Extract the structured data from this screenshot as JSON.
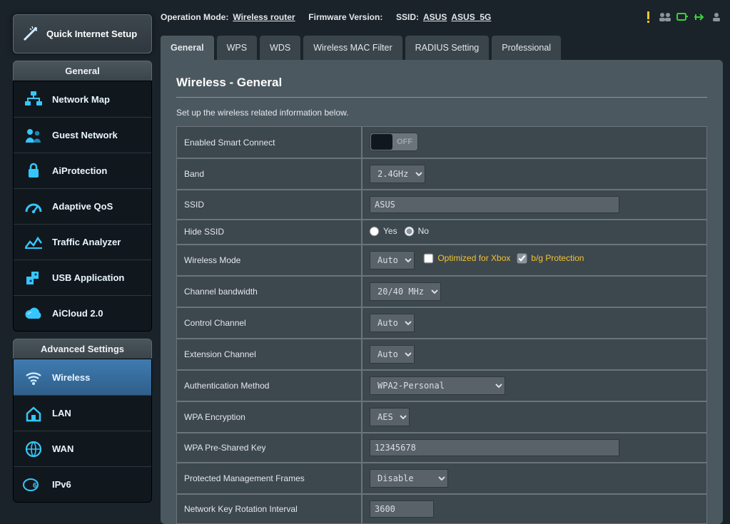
{
  "header": {
    "operation_mode_label": "Operation Mode:",
    "operation_mode_value": "Wireless router",
    "firmware_label": "Firmware Version:",
    "ssid_label": "SSID:",
    "ssid_values": [
      "ASUS",
      "ASUS_5G"
    ]
  },
  "qis_label": "Quick Internet Setup",
  "sections": {
    "general_title": "General",
    "advanced_title": "Advanced Settings"
  },
  "nav_general": [
    {
      "id": "network-map",
      "label": "Network Map"
    },
    {
      "id": "guest-network",
      "label": "Guest Network"
    },
    {
      "id": "aiprotection",
      "label": "AiProtection"
    },
    {
      "id": "adaptive-qos",
      "label": "Adaptive QoS"
    },
    {
      "id": "traffic-analyzer",
      "label": "Traffic Analyzer"
    },
    {
      "id": "usb-application",
      "label": "USB Application"
    },
    {
      "id": "aicloud",
      "label": "AiCloud 2.0"
    }
  ],
  "nav_advanced": [
    {
      "id": "wireless",
      "label": "Wireless",
      "active": true
    },
    {
      "id": "lan",
      "label": "LAN"
    },
    {
      "id": "wan",
      "label": "WAN"
    },
    {
      "id": "ipv6",
      "label": "IPv6"
    }
  ],
  "tabs": [
    {
      "id": "general",
      "label": "General",
      "active": true
    },
    {
      "id": "wps",
      "label": "WPS"
    },
    {
      "id": "wds",
      "label": "WDS"
    },
    {
      "id": "macfilter",
      "label": "Wireless MAC Filter"
    },
    {
      "id": "radius",
      "label": "RADIUS Setting"
    },
    {
      "id": "professional",
      "label": "Professional"
    }
  ],
  "page": {
    "title": "Wireless - General",
    "description": "Set up the wireless related information below."
  },
  "form": {
    "smart_connect": {
      "label": "Enabled Smart Connect",
      "state": "OFF"
    },
    "band": {
      "label": "Band",
      "value": "2.4GHz"
    },
    "ssid": {
      "label": "SSID",
      "value": "ASUS"
    },
    "hide_ssid": {
      "label": "Hide SSID",
      "yes": "Yes",
      "no": "No",
      "selected": "no"
    },
    "wireless_mode": {
      "label": "Wireless Mode",
      "value": "Auto",
      "opt_xbox": "Optimized for Xbox",
      "opt_bg": "b/g Protection",
      "xbox_checked": false,
      "bg_checked": true
    },
    "ch_bw": {
      "label": "Channel bandwidth",
      "value": "20/40 MHz"
    },
    "ctrl_ch": {
      "label": "Control Channel",
      "value": "Auto"
    },
    "ext_ch": {
      "label": "Extension Channel",
      "value": "Auto"
    },
    "auth": {
      "label": "Authentication Method",
      "value": "WPA2-Personal"
    },
    "wpa_enc": {
      "label": "WPA Encryption",
      "value": "AES"
    },
    "psk": {
      "label": "WPA Pre-Shared Key",
      "value": "12345678"
    },
    "pmf": {
      "label": "Protected Management Frames",
      "value": "Disable"
    },
    "rekey": {
      "label": "Network Key Rotation Interval",
      "value": "3600"
    }
  },
  "colors": {
    "accent": "#36c6ff",
    "gold": "#f4c430",
    "green": "#36d336",
    "panel": "#4c5860"
  }
}
